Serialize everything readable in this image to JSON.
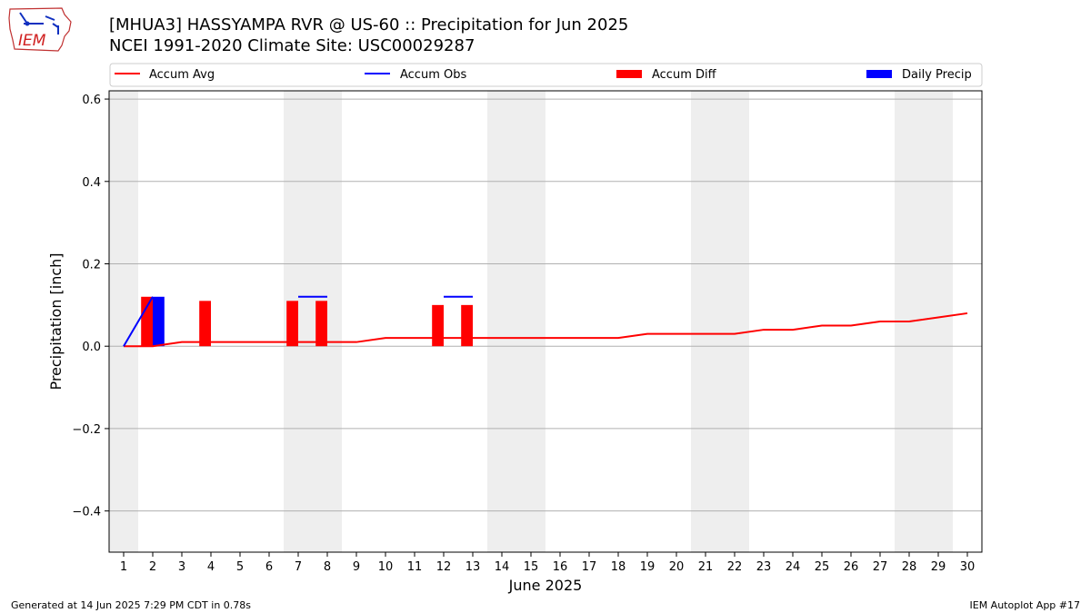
{
  "header": {
    "logo_text": "IEM",
    "title_line1": "[MHUA3] HASSYAMPA RVR @ US-60 :: Precipitation for Jun 2025",
    "title_line2": "NCEI 1991-2020 Climate Site: USC00029287"
  },
  "footer": {
    "generated": "Generated at 14 Jun 2025 7:29 PM CDT in 0.78s",
    "app": "IEM Autoplot App #17"
  },
  "colors": {
    "accum_avg": "#ff0000",
    "accum_obs": "#0000ff",
    "accum_diff": "#ff0000",
    "daily_precip": "#0000ff",
    "weekend_shade": "#eeeeee",
    "grid": "#b0b0b0"
  },
  "chart_data": {
    "type": "bar",
    "xlabel": "June 2025",
    "ylabel": "Precipitation [inch]",
    "xlim": [
      0.5,
      30.5
    ],
    "ylim": [
      -0.5,
      0.62
    ],
    "y_ticks": [
      -0.4,
      -0.2,
      0.0,
      0.2,
      0.4,
      0.6
    ],
    "y_tick_labels": [
      "−0.4",
      "−0.2",
      "0.0",
      "0.2",
      "0.4",
      "0.6"
    ],
    "x_ticks": [
      1,
      2,
      3,
      4,
      5,
      6,
      7,
      8,
      9,
      10,
      11,
      12,
      13,
      14,
      15,
      16,
      17,
      18,
      19,
      20,
      21,
      22,
      23,
      24,
      25,
      26,
      27,
      28,
      29,
      30
    ],
    "x_tick_labels": [
      "1",
      "2",
      "3",
      "4",
      "5",
      "6",
      "7",
      "8",
      "9",
      "10",
      "11",
      "12",
      "13",
      "14",
      "15",
      "16",
      "17",
      "18",
      "19",
      "20",
      "21",
      "22",
      "23",
      "24",
      "25",
      "26",
      "27",
      "28",
      "29",
      "30"
    ],
    "grid": "horizontal",
    "legend_placement": "top",
    "legend": [
      "Accum Avg",
      "Accum Obs",
      "Accum Diff",
      "Daily Precip"
    ],
    "weekend_shading": [
      [
        0.5,
        1.5
      ],
      [
        6.5,
        8.5
      ],
      [
        13.5,
        15.5
      ],
      [
        20.5,
        22.5
      ],
      [
        27.5,
        29.5
      ]
    ],
    "series": [
      {
        "name": "Accum Avg",
        "kind": "line",
        "x": [
          1,
          2,
          3,
          4,
          5,
          6,
          7,
          8,
          9,
          10,
          11,
          12,
          13,
          14,
          15,
          16,
          17,
          18,
          19,
          20,
          21,
          22,
          23,
          24,
          25,
          26,
          27,
          28,
          29,
          30
        ],
        "values": [
          0.0,
          0.0,
          0.01,
          0.01,
          0.01,
          0.01,
          0.01,
          0.01,
          0.01,
          0.02,
          0.02,
          0.02,
          0.02,
          0.02,
          0.02,
          0.02,
          0.02,
          0.02,
          0.03,
          0.03,
          0.03,
          0.03,
          0.04,
          0.04,
          0.05,
          0.05,
          0.06,
          0.06,
          0.07,
          0.08
        ]
      },
      {
        "name": "Accum Obs",
        "kind": "line",
        "segments": [
          {
            "x": [
              1,
              2
            ],
            "values": [
              0.0,
              0.12
            ]
          },
          {
            "x": [
              7,
              8
            ],
            "values": [
              0.12,
              0.12
            ]
          },
          {
            "x": [
              12,
              13
            ],
            "values": [
              0.12,
              0.12
            ]
          }
        ]
      },
      {
        "name": "Accum Diff",
        "kind": "bar",
        "x": [
          2,
          4,
          7,
          8,
          12,
          13
        ],
        "values": [
          0.12,
          0.11,
          0.11,
          0.11,
          0.1,
          0.1
        ]
      },
      {
        "name": "Daily Precip",
        "kind": "bar",
        "x": [
          2
        ],
        "values": [
          0.12
        ]
      }
    ]
  }
}
